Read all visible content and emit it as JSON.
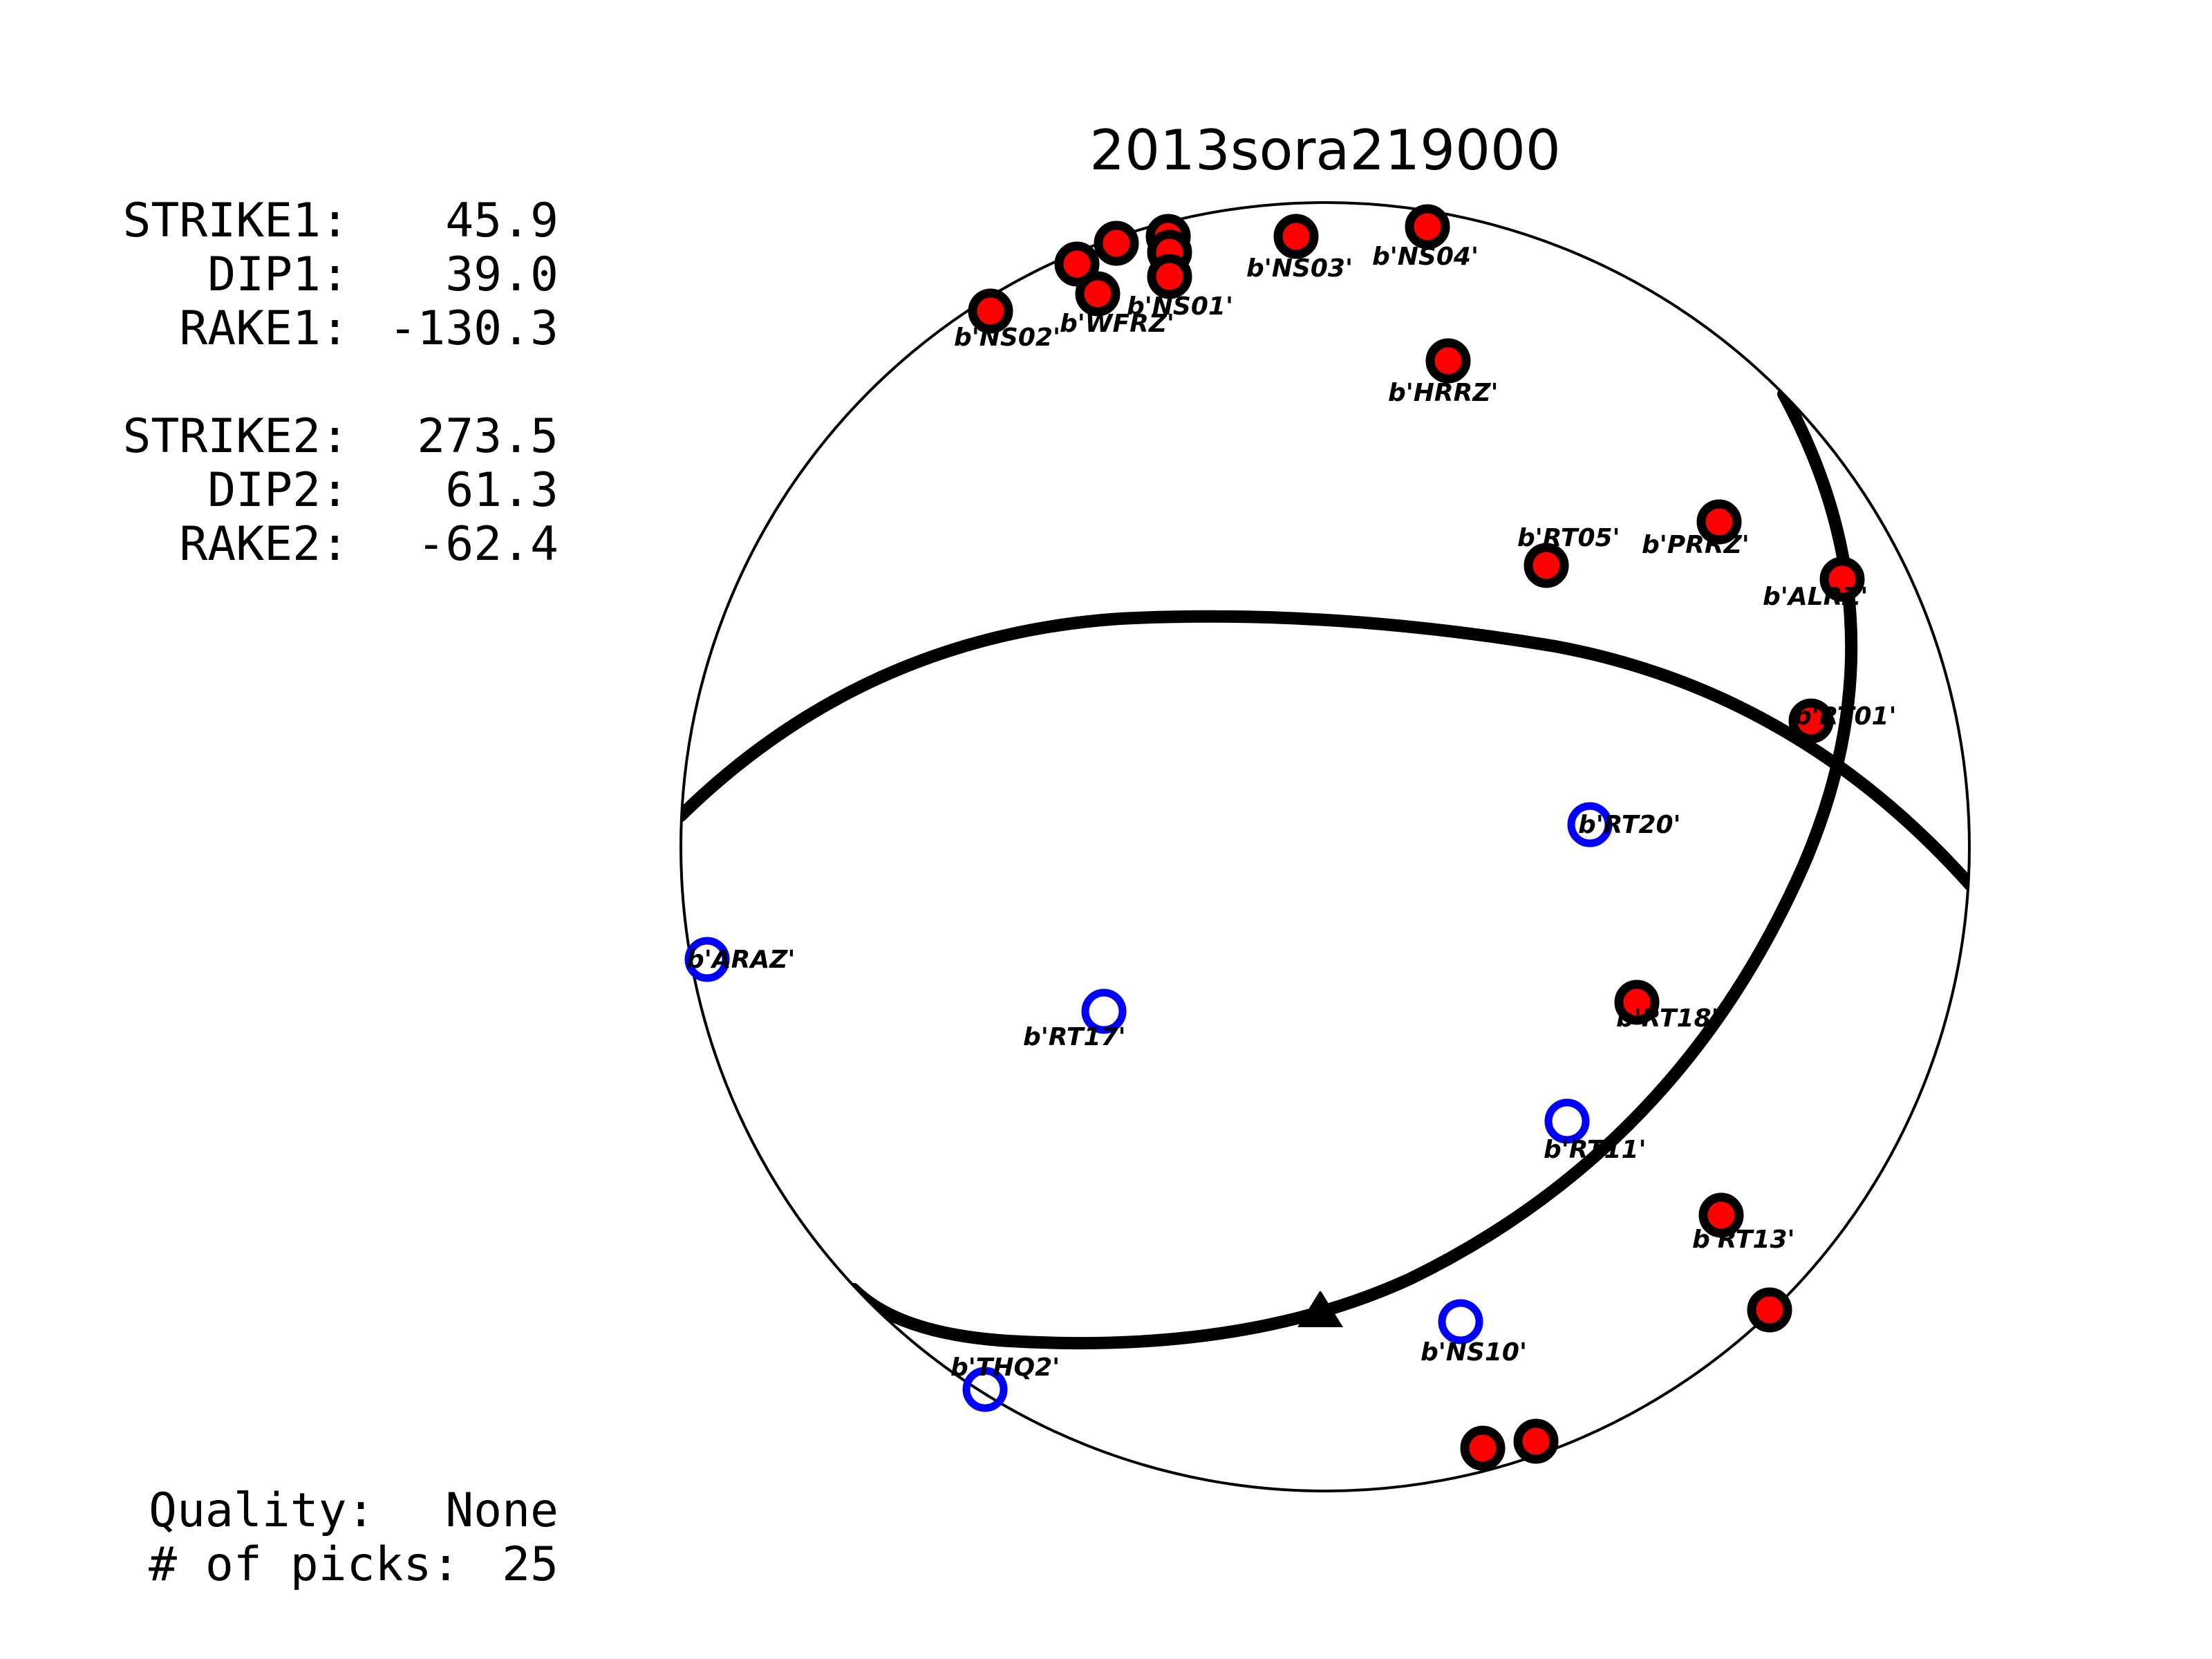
{
  "title": "2013sora219000",
  "params": [
    {
      "label": "STRIKE1:",
      "value": "45.9"
    },
    {
      "label": "DIP1:",
      "value": "39.0"
    },
    {
      "label": "RAKE1:",
      "value": "-130.3"
    },
    {
      "label": "STRIKE2:",
      "value": "273.5"
    },
    {
      "label": "DIP2:",
      "value": "61.3"
    },
    {
      "label": "RAKE2:",
      "value": "-62.4"
    }
  ],
  "quality": {
    "label": "Quality:",
    "value": "None"
  },
  "picks": {
    "label": "# of picks:",
    "value": "25"
  },
  "stations": [
    {
      "name": "b'NS02'",
      "polarity": "up"
    },
    {
      "name": "b'WFRZ'",
      "polarity": "up"
    },
    {
      "name": "b'NS01'",
      "polarity": "up"
    },
    {
      "name": "b'NS03'",
      "polarity": "up"
    },
    {
      "name": "b'NS04'",
      "polarity": "up"
    },
    {
      "name": "b'HRRZ'",
      "polarity": "up"
    },
    {
      "name": "b'RT05'",
      "polarity": "up"
    },
    {
      "name": "b'PRRZ'",
      "polarity": "up"
    },
    {
      "name": "b'ALRZ'",
      "polarity": "up"
    },
    {
      "name": "b'RT01'",
      "polarity": "up"
    },
    {
      "name": "b'RT20'",
      "polarity": "down"
    },
    {
      "name": "b'ARAZ'",
      "polarity": "down"
    },
    {
      "name": "b'RT17'",
      "polarity": "down"
    },
    {
      "name": "b'RT18'",
      "polarity": "up"
    },
    {
      "name": "b'RT11'",
      "polarity": "down"
    },
    {
      "name": "b'RT13'",
      "polarity": "up"
    },
    {
      "name": "b'NS10'",
      "polarity": "down"
    },
    {
      "name": "b'THQ2'",
      "polarity": "down"
    }
  ],
  "colors": {
    "compression": "#ff0000",
    "dilatation": "#0000ff",
    "outline": "#000000"
  }
}
